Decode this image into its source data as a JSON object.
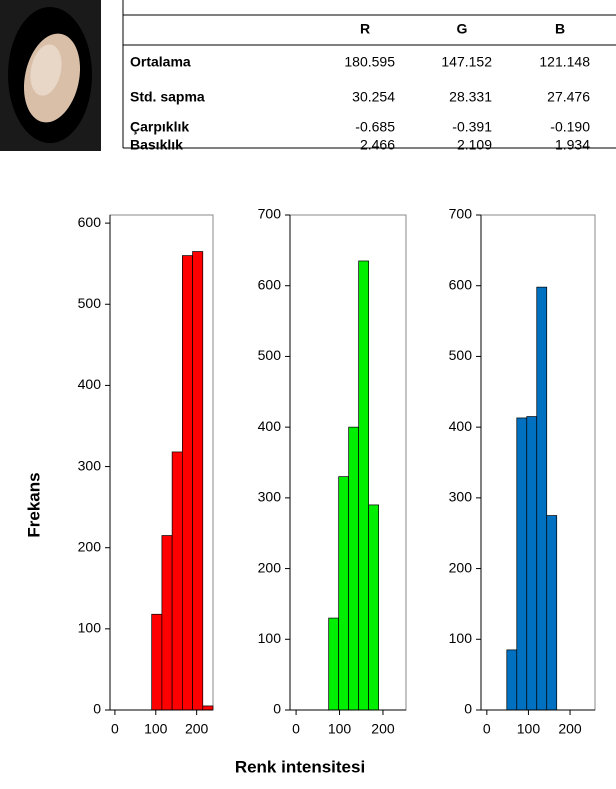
{
  "table": {
    "columns": [
      "R",
      "G",
      "B"
    ],
    "rows": [
      {
        "label": "Ortalama",
        "values": [
          "180.595",
          "147.152",
          "121.148"
        ]
      },
      {
        "label": "Std. sapma",
        "values": [
          "30.254",
          "28.331",
          "27.476"
        ]
      },
      {
        "label": "Çarpıklık",
        "values": [
          "-0.685",
          "-0.391",
          "-0.190"
        ]
      },
      {
        "label": "Basıklık",
        "values": [
          "2.466",
          "2.109",
          "1.934"
        ]
      }
    ]
  },
  "chart_data": [
    {
      "type": "histogram",
      "ylabel": "Frekans",
      "color": "#ff0000",
      "bins": [
        90,
        115,
        140,
        165,
        190,
        215,
        240
      ],
      "values": [
        118,
        215,
        318,
        560,
        565,
        5
      ],
      "xlim": [
        -12,
        240
      ],
      "xticks": [
        0,
        100,
        200
      ],
      "ylim": [
        0,
        610
      ],
      "yticks": [
        0,
        100,
        200,
        300,
        400,
        500,
        600
      ]
    },
    {
      "type": "histogram",
      "xlabel": "Renk intensitesi",
      "color": "#00ee00",
      "bins": [
        75,
        98,
        121,
        144,
        167,
        190
      ],
      "values": [
        130,
        330,
        400,
        635,
        290
      ],
      "xlim": [
        -14,
        253
      ],
      "xticks": [
        0,
        100,
        200
      ],
      "ylim": [
        0,
        700
      ],
      "yticks": [
        0,
        100,
        200,
        300,
        400,
        500,
        600,
        700
      ]
    },
    {
      "type": "histogram",
      "color": "#0070c0",
      "bins": [
        48,
        72,
        96,
        120,
        144,
        168
      ],
      "values": [
        85,
        413,
        415,
        598,
        275
      ],
      "xlim": [
        -14,
        260
      ],
      "xticks": [
        0,
        100,
        200
      ],
      "ylim": [
        0,
        700
      ],
      "yticks": [
        0,
        100,
        200,
        300,
        400,
        500,
        600,
        700
      ]
    }
  ]
}
